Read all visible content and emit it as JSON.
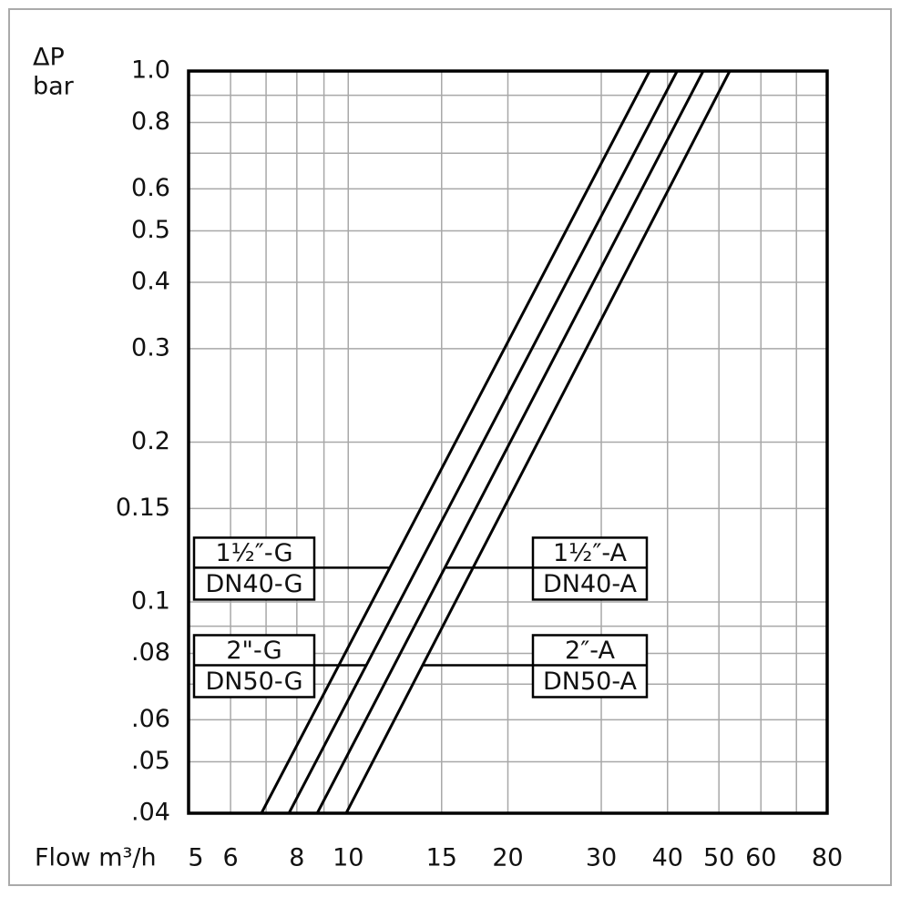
{
  "chart_data": {
    "type": "line",
    "y_label": [
      "ΔP",
      "bar"
    ],
    "x_label": "Flow m³/h",
    "log_x": true,
    "log_y": true,
    "grid": true,
    "xlim": [
      5,
      80
    ],
    "xticks": [
      5,
      6,
      8,
      10,
      15,
      20,
      30,
      40,
      50,
      60,
      80
    ],
    "xminor": [
      7,
      9,
      70
    ],
    "ylim": [
      0.04,
      1.0
    ],
    "yticks": [
      {
        "value": 1.0,
        "label": "1.0"
      },
      0.8,
      0.6,
      0.5,
      0.4,
      0.3,
      0.2,
      0.15,
      0.1,
      {
        "value": 0.08,
        "label": ".08"
      },
      {
        "value": 0.06,
        "label": ".06"
      },
      {
        "value": 0.05,
        "label": ".05"
      },
      {
        "value": 0.04,
        "label": ".04"
      }
    ],
    "yminor": [
      0.07,
      0.09,
      0.7,
      0.9
    ],
    "series": [
      {
        "name": "1½″-G",
        "alt_name": "DN40-G",
        "color": "#000000",
        "label_side": "left",
        "label_y": 0.116,
        "x": [
          6.86,
          37.0
        ],
        "y": [
          0.04,
          1.0
        ]
      },
      {
        "name": "2\"-G",
        "alt_name": "DN50-G",
        "color": "#000000",
        "label_side": "left",
        "label_y": 0.076,
        "x": [
          7.73,
          41.7
        ],
        "y": [
          0.04,
          1.0
        ]
      },
      {
        "name": "1½″-A",
        "alt_name": "DN40-A",
        "color": "#000000",
        "label_side": "right",
        "label_y": 0.116,
        "x": [
          8.74,
          46.7
        ],
        "y": [
          0.04,
          1.0
        ]
      },
      {
        "name": "2″-A",
        "alt_name": "DN50-A",
        "color": "#000000",
        "label_side": "right",
        "label_y": 0.076,
        "x": [
          9.91,
          52.4
        ],
        "y": [
          0.04,
          1.0
        ]
      }
    ]
  }
}
